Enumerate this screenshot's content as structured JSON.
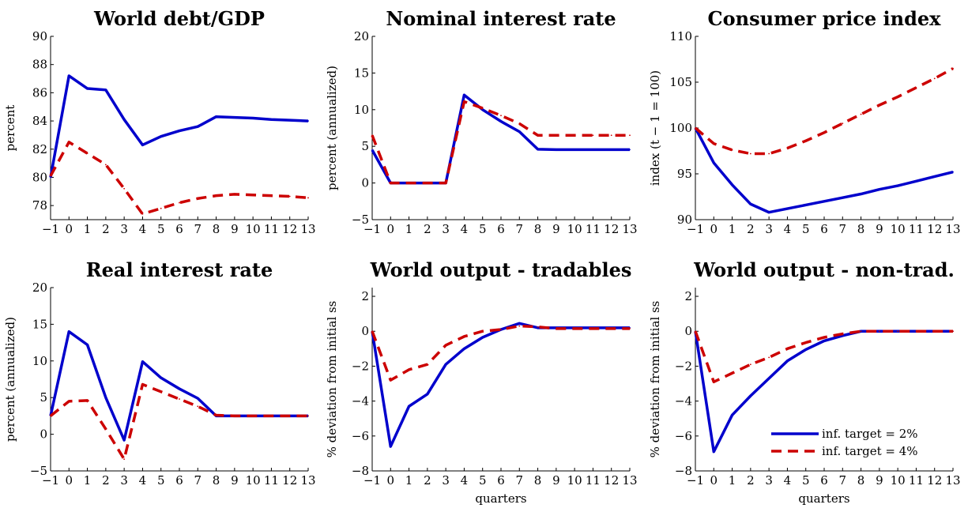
{
  "legend": {
    "items": [
      {
        "label": "inf. target = 2%",
        "color": "#0000cc",
        "dash": "solid"
      },
      {
        "label": "inf. target = 4%",
        "color": "#cc0000",
        "dash": "dashed"
      }
    ],
    "placement": "lower-right of bottom-right panel"
  },
  "chart_data": [
    {
      "type": "line",
      "title": "World debt/GDP",
      "xlabel": "",
      "ylabel": "percent",
      "x": [
        -1,
        0,
        1,
        2,
        3,
        4,
        5,
        6,
        7,
        8,
        9,
        10,
        11,
        12,
        13
      ],
      "xticks": [
        -1,
        0,
        1,
        2,
        3,
        4,
        5,
        6,
        7,
        8,
        9,
        10,
        11,
        12,
        13
      ],
      "xlim": [
        -1,
        13
      ],
      "ylim": [
        77,
        90
      ],
      "yticks": [
        78,
        80,
        82,
        84,
        86,
        88,
        90
      ],
      "grid": false,
      "series": [
        {
          "name": "inf. target = 2%",
          "values": [
            80.0,
            87.2,
            86.3,
            86.2,
            84.1,
            82.3,
            82.9,
            83.3,
            83.6,
            84.3,
            84.25,
            84.2,
            84.1,
            84.05,
            84.0
          ]
        },
        {
          "name": "inf. target = 4%",
          "values": [
            80.1,
            82.5,
            81.7,
            80.9,
            79.2,
            77.4,
            77.8,
            78.2,
            78.5,
            78.7,
            78.8,
            78.75,
            78.7,
            78.65,
            78.55
          ]
        }
      ]
    },
    {
      "type": "line",
      "title": "Nominal interest rate",
      "xlabel": "",
      "ylabel": "percent (annualized)",
      "x": [
        -1,
        0,
        1,
        2,
        3,
        4,
        5,
        6,
        7,
        8,
        9,
        10,
        11,
        12,
        13
      ],
      "xticks": [
        -1,
        0,
        1,
        2,
        3,
        4,
        5,
        6,
        7,
        8,
        9,
        10,
        11,
        12,
        13
      ],
      "xlim": [
        -1,
        13
      ],
      "ylim": [
        -5,
        20
      ],
      "yticks": [
        -5,
        0,
        5,
        10,
        15,
        20
      ],
      "grid": false,
      "series": [
        {
          "name": "inf. target = 2%",
          "values": [
            4.5,
            0,
            0,
            0,
            0,
            12.0,
            10.0,
            8.4,
            7.0,
            4.6,
            4.55,
            4.55,
            4.55,
            4.55,
            4.55
          ]
        },
        {
          "name": "inf. target = 4%",
          "values": [
            6.5,
            0,
            0,
            0,
            0,
            11.1,
            10.2,
            9.2,
            8.1,
            6.5,
            6.5,
            6.5,
            6.5,
            6.5,
            6.5
          ]
        }
      ]
    },
    {
      "type": "line",
      "title": "Consumer price index",
      "xlabel": "",
      "ylabel": "index (t − 1 = 100)",
      "x": [
        -1,
        0,
        1,
        2,
        3,
        4,
        5,
        6,
        7,
        8,
        9,
        10,
        11,
        12,
        13
      ],
      "xticks": [
        -1,
        0,
        1,
        2,
        3,
        4,
        5,
        6,
        7,
        8,
        9,
        10,
        11,
        12,
        13
      ],
      "xlim": [
        -1,
        13
      ],
      "ylim": [
        90,
        110
      ],
      "yticks": [
        90,
        95,
        100,
        105,
        110
      ],
      "grid": false,
      "series": [
        {
          "name": "inf. target = 2%",
          "values": [
            100,
            96.2,
            93.8,
            91.7,
            90.8,
            91.2,
            91.6,
            92.0,
            92.4,
            92.8,
            93.3,
            93.7,
            94.2,
            94.7,
            95.2
          ]
        },
        {
          "name": "inf. target = 4%",
          "values": [
            100,
            98.3,
            97.6,
            97.2,
            97.2,
            97.8,
            98.6,
            99.5,
            100.5,
            101.5,
            102.5,
            103.4,
            104.4,
            105.4,
            106.5
          ]
        }
      ]
    },
    {
      "type": "line",
      "title": "Real interest rate",
      "xlabel": "",
      "ylabel": "percent (annualized)",
      "x": [
        -1,
        0,
        1,
        2,
        3,
        4,
        5,
        6,
        7,
        8,
        9,
        10,
        11,
        12,
        13
      ],
      "xticks": [
        -1,
        0,
        1,
        2,
        3,
        4,
        5,
        6,
        7,
        8,
        9,
        10,
        11,
        12,
        13
      ],
      "xlim": [
        -1,
        13
      ],
      "ylim": [
        -5,
        20
      ],
      "yticks": [
        -5,
        0,
        5,
        10,
        15,
        20
      ],
      "grid": false,
      "series": [
        {
          "name": "inf. target = 2%",
          "values": [
            2.5,
            14.0,
            12.2,
            5.0,
            -0.8,
            9.9,
            7.7,
            6.2,
            4.9,
            2.5,
            2.5,
            2.5,
            2.5,
            2.5,
            2.5
          ]
        },
        {
          "name": "inf. target = 4%",
          "values": [
            2.5,
            4.5,
            4.6,
            0.7,
            -3.4,
            6.8,
            5.8,
            4.8,
            3.8,
            2.6,
            2.5,
            2.5,
            2.5,
            2.5,
            2.5
          ]
        }
      ]
    },
    {
      "type": "line",
      "title": "World output - tradables",
      "xlabel": "quarters",
      "ylabel": "% deviation from initial ss",
      "x": [
        -1,
        0,
        1,
        2,
        3,
        4,
        5,
        6,
        7,
        8,
        9,
        10,
        11,
        12,
        13
      ],
      "xticks": [
        -1,
        0,
        1,
        2,
        3,
        4,
        5,
        6,
        7,
        8,
        9,
        10,
        11,
        12,
        13
      ],
      "xlim": [
        -1,
        13
      ],
      "ylim": [
        -8,
        2.5
      ],
      "yticks": [
        -8,
        -6,
        -4,
        -2,
        0,
        2
      ],
      "grid": false,
      "series": [
        {
          "name": "inf. target = 2%",
          "values": [
            0,
            -6.6,
            -4.3,
            -3.6,
            -1.9,
            -1.0,
            -0.35,
            0.1,
            0.45,
            0.2,
            0.2,
            0.2,
            0.2,
            0.2,
            0.2
          ]
        },
        {
          "name": "inf. target = 4%",
          "values": [
            0,
            -2.8,
            -2.2,
            -1.9,
            -0.8,
            -0.3,
            0.0,
            0.1,
            0.3,
            0.25,
            0.15,
            0.15,
            0.15,
            0.15,
            0.15
          ]
        }
      ]
    },
    {
      "type": "line",
      "title": "World output - non-trad.",
      "xlabel": "quarters",
      "ylabel": "% deviation from initial ss",
      "x": [
        -1,
        0,
        1,
        2,
        3,
        4,
        5,
        6,
        7,
        8,
        9,
        10,
        11,
        12,
        13
      ],
      "xticks": [
        -1,
        0,
        1,
        2,
        3,
        4,
        5,
        6,
        7,
        8,
        9,
        10,
        11,
        12,
        13
      ],
      "xlim": [
        -1,
        13
      ],
      "ylim": [
        -8,
        2.5
      ],
      "yticks": [
        -8,
        -6,
        -4,
        -2,
        0,
        2
      ],
      "grid": false,
      "series": [
        {
          "name": "inf. target = 2%",
          "values": [
            0,
            -6.9,
            -4.8,
            -3.7,
            -2.7,
            -1.7,
            -1.05,
            -0.55,
            -0.25,
            0,
            0,
            0,
            0,
            0,
            0
          ]
        },
        {
          "name": "inf. target = 4%",
          "values": [
            0,
            -2.9,
            -2.4,
            -1.9,
            -1.5,
            -1.0,
            -0.65,
            -0.35,
            -0.15,
            0,
            0,
            0,
            0,
            0,
            0
          ]
        }
      ]
    }
  ]
}
